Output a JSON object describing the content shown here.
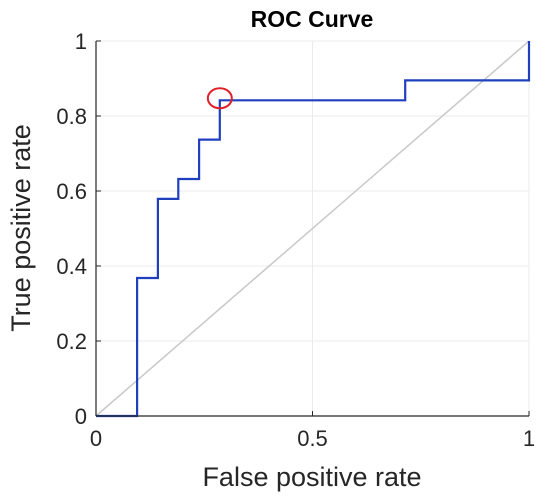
{
  "chart_data": {
    "type": "line",
    "title": "ROC Curve",
    "xlabel": "False positive rate",
    "ylabel": "True positive rate",
    "xlim": [
      0,
      1
    ],
    "ylim": [
      0,
      1
    ],
    "x_ticks": [
      "0",
      "0.5",
      "1"
    ],
    "y_ticks": [
      "0",
      "0.2",
      "0.4",
      "0.6",
      "0.8",
      "1"
    ],
    "grid": true,
    "series": [
      {
        "style": "step",
        "color": "#1f3fbf",
        "x": [
          0,
          0.095,
          0.095,
          0.143,
          0.143,
          0.19,
          0.19,
          0.238,
          0.238,
          0.286,
          0.286,
          0.714,
          0.714,
          1.0,
          1.0
        ],
        "y": [
          0,
          0,
          0.368,
          0.368,
          0.579,
          0.579,
          0.632,
          0.632,
          0.737,
          0.737,
          0.842,
          0.842,
          0.895,
          0.895,
          1.0
        ]
      }
    ],
    "reference_line": {
      "x": [
        0,
        1
      ],
      "y": [
        0,
        1
      ],
      "color": "#c8c8c8"
    },
    "marker": {
      "shape": "circle",
      "x": 0.286,
      "y": 0.842,
      "color": "#e0202a"
    }
  }
}
